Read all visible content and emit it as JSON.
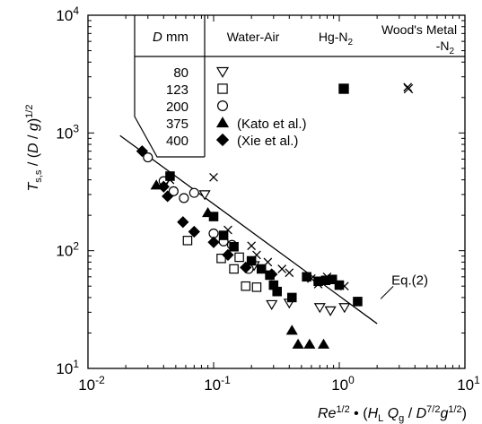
{
  "chart_data": {
    "type": "scatter",
    "title": "",
    "x_scale": "log",
    "y_scale": "log",
    "xlim": [
      0.01,
      10
    ],
    "ylim": [
      10,
      10000
    ],
    "grid": false,
    "x_ticks": [
      {
        "value": 0.01,
        "base": "10",
        "exp": "-2"
      },
      {
        "value": 0.1,
        "base": "10",
        "exp": "-1"
      },
      {
        "value": 1,
        "base": "10",
        "exp": "0"
      },
      {
        "value": 10,
        "base": "10",
        "exp": "1"
      }
    ],
    "y_ticks": [
      {
        "value": 10,
        "base": "10",
        "exp": "1"
      },
      {
        "value": 100,
        "base": "10",
        "exp": "2"
      },
      {
        "value": 1000,
        "base": "10",
        "exp": "3"
      },
      {
        "value": 10000,
        "base": "10",
        "exp": "4"
      }
    ],
    "xlabel_parts": [
      {
        "t": "Re",
        "it": true
      },
      {
        "t": "1/2",
        "sup": true
      },
      {
        "t": " • (",
        "it": false
      },
      {
        "t": "H",
        "it": true
      },
      {
        "t": "L",
        "sub": true,
        "it": false
      },
      {
        "t": " Q",
        "it": true
      },
      {
        "t": "g",
        "sub": true,
        "it": false
      },
      {
        "t": " / ",
        "it": false
      },
      {
        "t": "D",
        "it": true
      },
      {
        "t": "7/2",
        "sup": true
      },
      {
        "t": "g",
        "it": true
      },
      {
        "t": "1/2",
        "sup": true
      },
      {
        "t": ")",
        "it": false
      }
    ],
    "ylabel_parts": [
      {
        "t": "T",
        "it": true
      },
      {
        "t": "s,s",
        "sub": true,
        "it": false
      },
      {
        "t": " / (",
        "it": false
      },
      {
        "t": "D",
        "it": true
      },
      {
        "t": " / ",
        "it": false
      },
      {
        "t": "g",
        "it": true
      },
      {
        "t": ")",
        "it": false
      },
      {
        "t": "1/2",
        "sup": true
      }
    ],
    "legend": {
      "placement": "top-right",
      "header": {
        "d_label": "D",
        "d_unit": "mm",
        "col1": "Water-Air",
        "col2_main": "Hg-N",
        "col2_sub": "2",
        "col3_line1": "Wood's Metal",
        "col3_line2": "-N",
        "col3_sub": "2"
      },
      "rows": [
        {
          "D": "80",
          "marker": "triangle-down-open",
          "col": 1,
          "text": ""
        },
        {
          "D": "123",
          "marker": "square-open",
          "col": 1,
          "text": ""
        },
        {
          "D": "123",
          "marker": "square-filled",
          "col": 2,
          "text": ""
        },
        {
          "D": "123",
          "marker": "x",
          "col": 3,
          "text": ""
        },
        {
          "D": "200",
          "marker": "circle-open",
          "col": 1,
          "text": ""
        },
        {
          "D": "375",
          "marker": "triangle-up-filled",
          "col": 1,
          "text": "(Kato et al.)"
        },
        {
          "D": "400",
          "marker": "diamond-filled",
          "col": 1,
          "text": "(Xie et al.)"
        }
      ],
      "d_values": [
        "80",
        "123",
        "200",
        "375",
        "400"
      ]
    },
    "annotation": {
      "text": "Eq.(2)",
      "x": 2.0,
      "y": 39
    },
    "line": {
      "name": "Eq.(2)",
      "points": [
        [
          0.018,
          950
        ],
        [
          2.0,
          24
        ]
      ]
    },
    "series": [
      {
        "marker": "triangle-down-open",
        "D": "80",
        "points": [
          [
            0.085,
            300
          ],
          [
            0.21,
            75
          ],
          [
            0.29,
            35
          ],
          [
            0.4,
            36
          ],
          [
            0.7,
            33
          ],
          [
            0.85,
            31
          ],
          [
            1.1,
            33
          ]
        ]
      },
      {
        "marker": "square-open",
        "D": "123",
        "points": [
          [
            0.062,
            122
          ],
          [
            0.115,
            86
          ],
          [
            0.145,
            70
          ],
          [
            0.18,
            50
          ],
          [
            0.22,
            49
          ],
          [
            0.16,
            88
          ]
        ]
      },
      {
        "marker": "circle-open",
        "D": "200",
        "points": [
          [
            0.03,
            620
          ],
          [
            0.04,
            390
          ],
          [
            0.048,
            320
          ],
          [
            0.058,
            280
          ],
          [
            0.07,
            310
          ],
          [
            0.1,
            140
          ],
          [
            0.12,
            120
          ],
          [
            0.14,
            112
          ],
          [
            0.19,
            70
          ]
        ]
      },
      {
        "marker": "triangle-up-filled",
        "D": "375",
        "points": [
          [
            0.035,
            360
          ],
          [
            0.09,
            210
          ],
          [
            0.42,
            21
          ],
          [
            0.47,
            16
          ],
          [
            0.58,
            16
          ],
          [
            0.75,
            16
          ]
        ]
      },
      {
        "marker": "diamond-filled",
        "D": "400",
        "points": [
          [
            0.027,
            700
          ],
          [
            0.04,
            350
          ],
          [
            0.043,
            290
          ],
          [
            0.057,
            175
          ],
          [
            0.07,
            145
          ],
          [
            0.1,
            118
          ],
          [
            0.13,
            92
          ],
          [
            0.18,
            72
          ],
          [
            0.29,
            63
          ]
        ]
      },
      {
        "marker": "square-filled",
        "D": "123",
        "points": [
          [
            0.045,
            430
          ],
          [
            0.1,
            195
          ],
          [
            0.12,
            135
          ],
          [
            0.145,
            108
          ],
          [
            0.2,
            82
          ],
          [
            0.24,
            70
          ],
          [
            0.28,
            62
          ],
          [
            0.3,
            51
          ],
          [
            0.32,
            45
          ],
          [
            0.42,
            40
          ],
          [
            0.55,
            60
          ],
          [
            0.68,
            55
          ],
          [
            0.78,
            56
          ],
          [
            0.88,
            57
          ],
          [
            1.0,
            51
          ],
          [
            1.4,
            37
          ]
        ]
      },
      {
        "marker": "x",
        "D": "123",
        "points": [
          [
            0.045,
            400
          ],
          [
            0.1,
            420
          ],
          [
            0.13,
            150
          ],
          [
            0.2,
            110
          ],
          [
            0.22,
            92
          ],
          [
            0.27,
            80
          ],
          [
            0.35,
            70
          ],
          [
            0.4,
            65
          ],
          [
            0.6,
            58
          ],
          [
            0.68,
            52
          ],
          [
            0.8,
            60
          ],
          [
            1.1,
            50
          ],
          [
            3.5,
            2450
          ]
        ]
      }
    ]
  }
}
